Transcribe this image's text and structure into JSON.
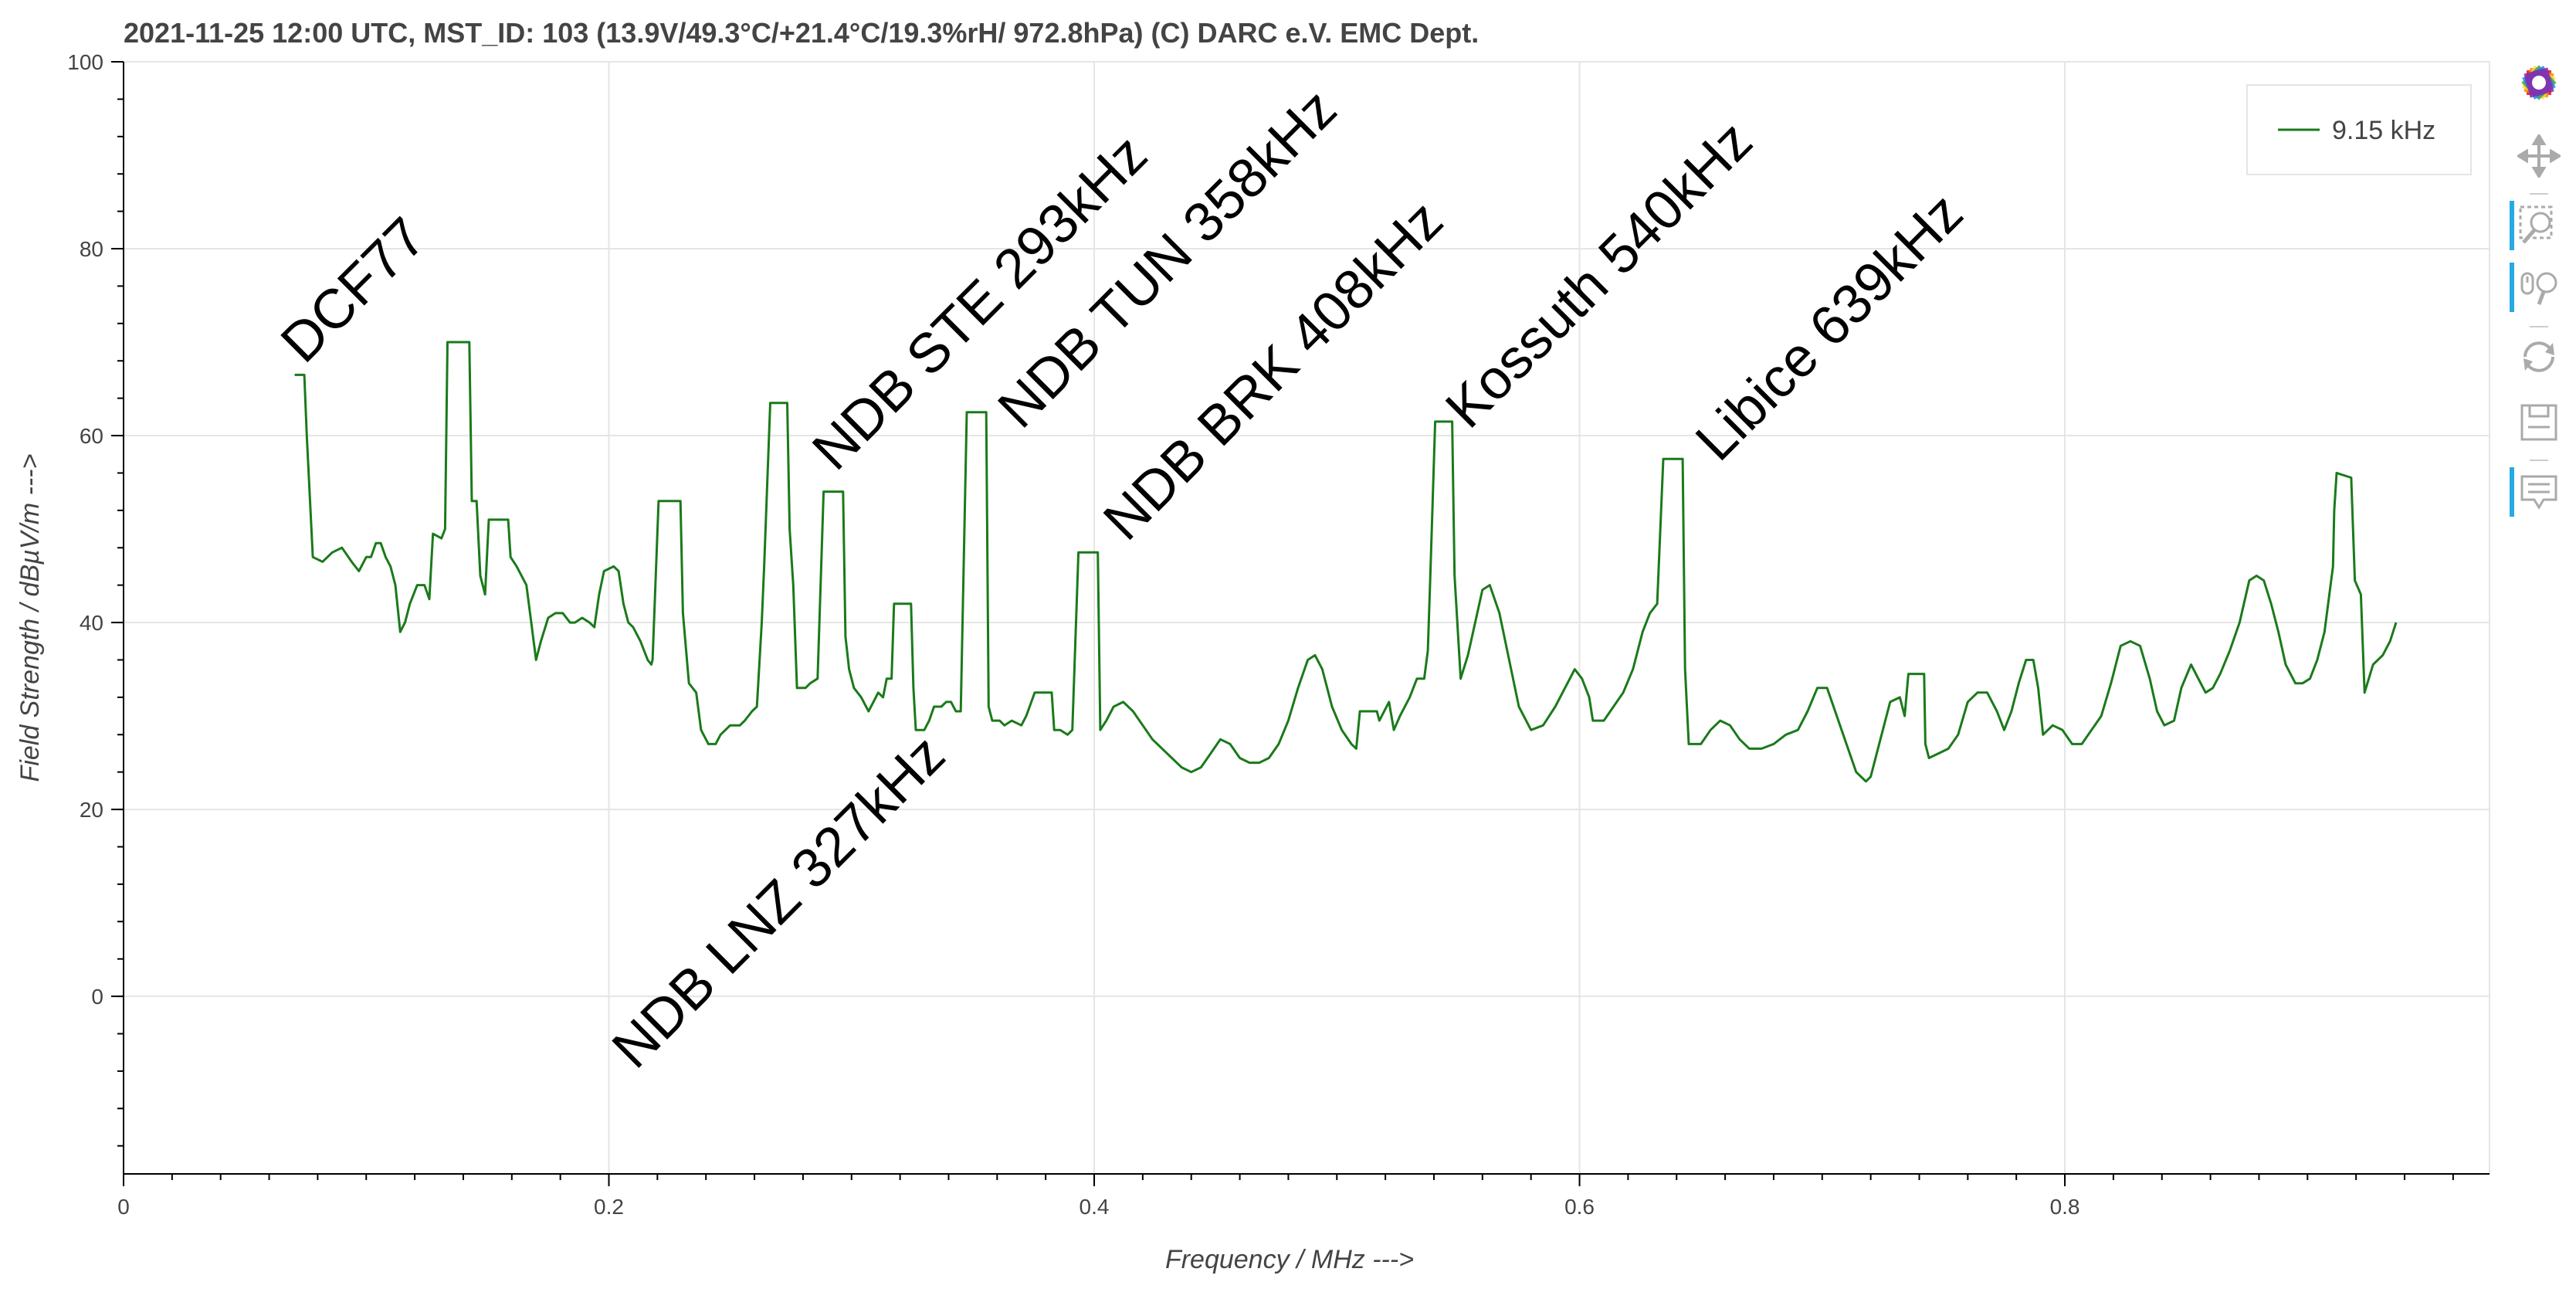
{
  "chart_data": {
    "type": "line",
    "title": "2021-11-25 12:00  UTC,  MST_ID:  103   (13.9V/49.3°C/+21.4°C/19.3%rH/ 972.8hPa)   (C) DARC e.V. EMC Dept.",
    "xlabel": "Frequency / MHz --->",
    "ylabel": "Field Strength / dBµV/m --->",
    "xlim": [
      0,
      0.975
    ],
    "ylim": [
      -19,
      100
    ],
    "x_ticks": [
      {
        "value": 0,
        "label": "0"
      },
      {
        "value": 0.2,
        "label": "0.2"
      },
      {
        "value": 0.4,
        "label": "0.4"
      },
      {
        "value": 0.6,
        "label": "0.6"
      },
      {
        "value": 0.8,
        "label": "0.8"
      }
    ],
    "y_ticks": [
      {
        "value": 0,
        "label": "0"
      },
      {
        "value": 20,
        "label": "20"
      },
      {
        "value": 40,
        "label": "40"
      },
      {
        "value": 60,
        "label": "60"
      },
      {
        "value": 80,
        "label": "80"
      },
      {
        "value": 100,
        "label": "100"
      }
    ],
    "grid": true,
    "legend_position": "top-right",
    "series": [
      {
        "name": "9.15 kHz",
        "color": "#1a7a1a",
        "points": [
          [
            0.0705,
            66.5
          ],
          [
            0.0745,
            66.5
          ],
          [
            0.0755,
            60.0
          ],
          [
            0.078,
            47.0
          ],
          [
            0.082,
            46.5
          ],
          [
            0.086,
            47.5
          ],
          [
            0.09,
            48.0
          ],
          [
            0.094,
            46.5
          ],
          [
            0.097,
            45.5
          ],
          [
            0.1,
            47.0
          ],
          [
            0.102,
            47.0
          ],
          [
            0.104,
            48.5
          ],
          [
            0.106,
            48.5
          ],
          [
            0.108,
            47.0
          ],
          [
            0.11,
            46.0
          ],
          [
            0.112,
            44.0
          ],
          [
            0.114,
            39.0
          ],
          [
            0.116,
            40.0
          ],
          [
            0.118,
            42.0
          ],
          [
            0.121,
            44.0
          ],
          [
            0.124,
            44.0
          ],
          [
            0.126,
            42.5
          ],
          [
            0.1275,
            49.5
          ],
          [
            0.131,
            49.0
          ],
          [
            0.1325,
            50.0
          ],
          [
            0.1335,
            70.0
          ],
          [
            0.1425,
            70.0
          ],
          [
            0.1435,
            53.0
          ],
          [
            0.1455,
            53.0
          ],
          [
            0.147,
            45.0
          ],
          [
            0.149,
            43.0
          ],
          [
            0.1505,
            51.0
          ],
          [
            0.1585,
            51.0
          ],
          [
            0.1595,
            47.0
          ],
          [
            0.162,
            46.0
          ],
          [
            0.166,
            44.0
          ],
          [
            0.168,
            40.0
          ],
          [
            0.17,
            36.0
          ],
          [
            0.172,
            38.0
          ],
          [
            0.175,
            40.5
          ],
          [
            0.178,
            41.0
          ],
          [
            0.181,
            41.0
          ],
          [
            0.184,
            40.0
          ],
          [
            0.186,
            40.0
          ],
          [
            0.189,
            40.5
          ],
          [
            0.192,
            40.0
          ],
          [
            0.194,
            39.5
          ],
          [
            0.196,
            43.0
          ],
          [
            0.198,
            45.5
          ],
          [
            0.202,
            46.0
          ],
          [
            0.204,
            45.5
          ],
          [
            0.206,
            42.0
          ],
          [
            0.208,
            40.0
          ],
          [
            0.21,
            39.5
          ],
          [
            0.213,
            38.0
          ],
          [
            0.216,
            36.0
          ],
          [
            0.2175,
            35.5
          ],
          [
            0.218,
            36.0
          ],
          [
            0.2205,
            53.0
          ],
          [
            0.2295,
            53.0
          ],
          [
            0.2305,
            41.0
          ],
          [
            0.233,
            33.5
          ],
          [
            0.236,
            32.5
          ],
          [
            0.238,
            28.5
          ],
          [
            0.241,
            27.0
          ],
          [
            0.244,
            27.0
          ],
          [
            0.246,
            28.0
          ],
          [
            0.25,
            29.0
          ],
          [
            0.254,
            29.0
          ],
          [
            0.256,
            29.5
          ],
          [
            0.259,
            30.5
          ],
          [
            0.261,
            31.0
          ],
          [
            0.263,
            40.0
          ],
          [
            0.264,
            46.0
          ],
          [
            0.2665,
            63.5
          ],
          [
            0.2735,
            63.5
          ],
          [
            0.2745,
            50.0
          ],
          [
            0.276,
            44.0
          ],
          [
            0.2775,
            33.0
          ],
          [
            0.281,
            33.0
          ],
          [
            0.283,
            33.5
          ],
          [
            0.286,
            34.0
          ],
          [
            0.2885,
            54.0
          ],
          [
            0.2965,
            54.0
          ],
          [
            0.2975,
            38.5
          ],
          [
            0.299,
            35.0
          ],
          [
            0.301,
            33.0
          ],
          [
            0.304,
            32.0
          ],
          [
            0.307,
            30.5
          ],
          [
            0.309,
            31.5
          ],
          [
            0.311,
            32.5
          ],
          [
            0.313,
            32.0
          ],
          [
            0.3145,
            34.0
          ],
          [
            0.3165,
            34.0
          ],
          [
            0.3175,
            42.0
          ],
          [
            0.3245,
            42.0
          ],
          [
            0.3255,
            33.0
          ],
          [
            0.3265,
            28.5
          ],
          [
            0.33,
            28.5
          ],
          [
            0.332,
            29.5
          ],
          [
            0.334,
            31.0
          ],
          [
            0.337,
            31.0
          ],
          [
            0.339,
            31.5
          ],
          [
            0.341,
            31.5
          ],
          [
            0.343,
            30.5
          ],
          [
            0.345,
            30.5
          ],
          [
            0.3475,
            62.5
          ],
          [
            0.3555,
            62.5
          ],
          [
            0.3565,
            31.0
          ],
          [
            0.358,
            29.5
          ],
          [
            0.361,
            29.5
          ],
          [
            0.363,
            29.0
          ],
          [
            0.366,
            29.5
          ],
          [
            0.37,
            29.0
          ],
          [
            0.372,
            30.0
          ],
          [
            0.3755,
            32.5
          ],
          [
            0.3825,
            32.5
          ],
          [
            0.3835,
            28.5
          ],
          [
            0.386,
            28.5
          ],
          [
            0.389,
            28.0
          ],
          [
            0.391,
            28.5
          ],
          [
            0.3935,
            47.5
          ],
          [
            0.4015,
            47.5
          ],
          [
            0.4025,
            28.5
          ],
          [
            0.405,
            29.5
          ],
          [
            0.408,
            31.0
          ],
          [
            0.412,
            31.5
          ],
          [
            0.416,
            30.5
          ],
          [
            0.42,
            29.0
          ],
          [
            0.424,
            27.5
          ],
          [
            0.428,
            26.5
          ],
          [
            0.432,
            25.5
          ],
          [
            0.436,
            24.5
          ],
          [
            0.44,
            24.0
          ],
          [
            0.444,
            24.5
          ],
          [
            0.448,
            26.0
          ],
          [
            0.452,
            27.5
          ],
          [
            0.456,
            27.0
          ],
          [
            0.46,
            25.5
          ],
          [
            0.464,
            25.0
          ],
          [
            0.468,
            25.0
          ],
          [
            0.472,
            25.5
          ],
          [
            0.476,
            27.0
          ],
          [
            0.48,
            29.5
          ],
          [
            0.484,
            33.0
          ],
          [
            0.488,
            36.0
          ],
          [
            0.491,
            36.5
          ],
          [
            0.494,
            35.0
          ],
          [
            0.498,
            31.0
          ],
          [
            0.502,
            28.5
          ],
          [
            0.506,
            27.0
          ],
          [
            0.508,
            26.5
          ],
          [
            0.5095,
            30.5
          ],
          [
            0.5165,
            30.5
          ],
          [
            0.5175,
            29.5
          ],
          [
            0.5215,
            31.5
          ],
          [
            0.5235,
            28.5
          ],
          [
            0.526,
            30.0
          ],
          [
            0.53,
            32.0
          ],
          [
            0.533,
            34.0
          ],
          [
            0.536,
            34.0
          ],
          [
            0.5375,
            37.0
          ],
          [
            0.5385,
            45.0
          ],
          [
            0.5405,
            61.5
          ],
          [
            0.5475,
            61.5
          ],
          [
            0.5485,
            45.0
          ],
          [
            0.551,
            34.0
          ],
          [
            0.554,
            36.5
          ],
          [
            0.557,
            40.0
          ],
          [
            0.56,
            43.5
          ],
          [
            0.563,
            44.0
          ],
          [
            0.567,
            41.0
          ],
          [
            0.571,
            36.0
          ],
          [
            0.575,
            31.0
          ],
          [
            0.58,
            28.5
          ],
          [
            0.585,
            29.0
          ],
          [
            0.59,
            31.0
          ],
          [
            0.594,
            33.0
          ],
          [
            0.598,
            35.0
          ],
          [
            0.601,
            34.0
          ],
          [
            0.604,
            32.0
          ],
          [
            0.6055,
            29.5
          ],
          [
            0.61,
            29.5
          ],
          [
            0.614,
            31.0
          ],
          [
            0.618,
            32.5
          ],
          [
            0.622,
            35.0
          ],
          [
            0.626,
            39.0
          ],
          [
            0.629,
            41.0
          ],
          [
            0.632,
            42.0
          ],
          [
            0.6345,
            57.5
          ],
          [
            0.6425,
            57.5
          ],
          [
            0.6435,
            35.0
          ],
          [
            0.645,
            27.0
          ],
          [
            0.65,
            27.0
          ],
          [
            0.654,
            28.5
          ],
          [
            0.658,
            29.5
          ],
          [
            0.662,
            29.0
          ],
          [
            0.666,
            27.5
          ],
          [
            0.67,
            26.5
          ],
          [
            0.675,
            26.5
          ],
          [
            0.68,
            27.0
          ],
          [
            0.685,
            28.0
          ],
          [
            0.69,
            28.5
          ],
          [
            0.694,
            30.5
          ],
          [
            0.698,
            33.0
          ],
          [
            0.702,
            33.0
          ],
          [
            0.706,
            30.0
          ],
          [
            0.71,
            27.0
          ],
          [
            0.714,
            24.0
          ],
          [
            0.718,
            23.0
          ],
          [
            0.72,
            23.5
          ],
          [
            0.724,
            27.5
          ],
          [
            0.728,
            31.5
          ],
          [
            0.732,
            32.0
          ],
          [
            0.734,
            30.0
          ],
          [
            0.7355,
            34.5
          ],
          [
            0.742,
            34.5
          ],
          [
            0.7425,
            27.0
          ],
          [
            0.744,
            25.5
          ],
          [
            0.748,
            26.0
          ],
          [
            0.752,
            26.5
          ],
          [
            0.756,
            28.0
          ],
          [
            0.76,
            31.5
          ],
          [
            0.764,
            32.5
          ],
          [
            0.768,
            32.5
          ],
          [
            0.772,
            30.5
          ],
          [
            0.775,
            28.5
          ],
          [
            0.778,
            30.5
          ],
          [
            0.781,
            33.5
          ],
          [
            0.784,
            36.0
          ],
          [
            0.787,
            36.0
          ],
          [
            0.789,
            33.0
          ],
          [
            0.791,
            28.0
          ],
          [
            0.795,
            29.0
          ],
          [
            0.799,
            28.5
          ],
          [
            0.803,
            27.0
          ],
          [
            0.807,
            27.0
          ],
          [
            0.811,
            28.5
          ],
          [
            0.815,
            30.0
          ],
          [
            0.819,
            33.5
          ],
          [
            0.823,
            37.5
          ],
          [
            0.827,
            38.0
          ],
          [
            0.831,
            37.5
          ],
          [
            0.835,
            34.0
          ],
          [
            0.838,
            30.5
          ],
          [
            0.841,
            29.0
          ],
          [
            0.845,
            29.5
          ],
          [
            0.848,
            33.0
          ],
          [
            0.852,
            35.5
          ],
          [
            0.855,
            34.0
          ],
          [
            0.858,
            32.5
          ],
          [
            0.861,
            33.0
          ],
          [
            0.864,
            34.5
          ],
          [
            0.868,
            37.0
          ],
          [
            0.872,
            40.0
          ],
          [
            0.876,
            44.5
          ],
          [
            0.879,
            45.0
          ],
          [
            0.882,
            44.5
          ],
          [
            0.885,
            42.0
          ],
          [
            0.888,
            39.0
          ],
          [
            0.891,
            35.5
          ],
          [
            0.895,
            33.5
          ],
          [
            0.898,
            33.5
          ],
          [
            0.901,
            34.0
          ],
          [
            0.904,
            36.0
          ],
          [
            0.907,
            39.0
          ],
          [
            0.909,
            43.0
          ],
          [
            0.9105,
            46.0
          ],
          [
            0.911,
            52.0
          ],
          [
            0.912,
            56.0
          ],
          [
            0.918,
            55.5
          ],
          [
            0.9195,
            44.5
          ],
          [
            0.922,
            43.0
          ],
          [
            0.9235,
            32.5
          ],
          [
            0.927,
            35.5
          ],
          [
            0.931,
            36.5
          ],
          [
            0.934,
            38.0
          ],
          [
            0.9365,
            40.0
          ]
        ]
      }
    ],
    "annotations": [
      {
        "text": "DCF77",
        "x": 0.0745,
        "y": 67.5
      },
      {
        "text": "NDB STE 293kHz",
        "x": 0.2935,
        "y": 56
      },
      {
        "text": "NDB TUN 358kHz",
        "x": 0.37,
        "y": 60.5
      },
      {
        "text": "NDB BRK 408kHz",
        "x": 0.4135,
        "y": 48.5
      },
      {
        "text": "Kossuth 540kHz",
        "x": 0.5545,
        "y": 60.5
      },
      {
        "text": "Libice 639kHz",
        "x": 0.6575,
        "y": 57
      },
      {
        "text": "NDB LNZ 327kHz",
        "x": 0.211,
        "y": -8
      }
    ]
  },
  "toolbar": {
    "tools": [
      {
        "name": "bokeh-logo",
        "active": false
      },
      {
        "name": "pan-icon",
        "active": false
      },
      {
        "name": "box-zoom-icon",
        "active": true
      },
      {
        "name": "wheel-zoom-icon",
        "active": true
      },
      {
        "name": "reset-icon",
        "active": false
      },
      {
        "name": "save-icon",
        "active": false
      },
      {
        "name": "hover-icon",
        "active": true
      }
    ]
  }
}
